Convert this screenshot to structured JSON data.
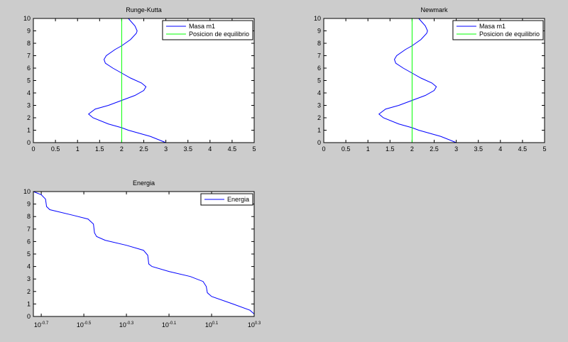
{
  "chart_data": [
    {
      "type": "line",
      "title": "Runge-Kutta",
      "xlim": [
        0,
        5
      ],
      "ylim": [
        0,
        10
      ],
      "xticks": [
        0,
        0.5,
        1,
        1.5,
        2,
        2.5,
        3,
        3.5,
        4,
        4.5,
        5
      ],
      "yticks": [
        0,
        1,
        2,
        3,
        4,
        5,
        6,
        7,
        8,
        9,
        10
      ],
      "legend": "northeast",
      "series": [
        {
          "name": "Masa m1",
          "color": "#0000ff",
          "x": [
            3.0,
            2.65,
            2.15,
            2.0,
            1.7,
            1.35,
            1.25,
            1.4,
            1.7,
            2.0,
            2.3,
            2.5,
            2.55,
            2.45,
            2.2,
            2.0,
            1.8,
            1.63,
            1.6,
            1.65,
            1.85,
            2.0,
            2.2,
            2.33,
            2.35,
            2.3,
            2.2,
            2.15
          ],
          "y": [
            0,
            0.5,
            1.0,
            1.2,
            1.5,
            2.0,
            2.3,
            2.7,
            3.0,
            3.4,
            3.8,
            4.2,
            4.5,
            4.8,
            5.2,
            5.6,
            6.0,
            6.4,
            6.7,
            7.0,
            7.5,
            7.8,
            8.3,
            8.8,
            9.0,
            9.4,
            9.8,
            10
          ]
        },
        {
          "name": "Posicion de equilibrio",
          "color": "#00ff00",
          "x": [
            2,
            2
          ],
          "y": [
            0,
            10
          ]
        }
      ]
    },
    {
      "type": "line",
      "title": "Newmark",
      "xlim": [
        0,
        5
      ],
      "ylim": [
        0,
        10
      ],
      "xticks": [
        0,
        0.5,
        1,
        1.5,
        2,
        2.5,
        3,
        3.5,
        4,
        4.5,
        5
      ],
      "yticks": [
        0,
        1,
        2,
        3,
        4,
        5,
        6,
        7,
        8,
        9,
        10
      ],
      "legend": "northeast",
      "series": [
        {
          "name": "Masa m1",
          "color": "#0000ff",
          "x": [
            3.0,
            2.65,
            2.15,
            2.0,
            1.7,
            1.35,
            1.25,
            1.4,
            1.7,
            2.0,
            2.3,
            2.5,
            2.55,
            2.45,
            2.2,
            2.0,
            1.8,
            1.63,
            1.6,
            1.65,
            1.85,
            2.0,
            2.2,
            2.33,
            2.35,
            2.3,
            2.2,
            2.15
          ],
          "y": [
            0,
            0.5,
            1.0,
            1.2,
            1.5,
            2.0,
            2.3,
            2.7,
            3.0,
            3.4,
            3.8,
            4.2,
            4.5,
            4.8,
            5.2,
            5.6,
            6.0,
            6.4,
            6.7,
            7.0,
            7.5,
            7.8,
            8.3,
            8.8,
            9.0,
            9.4,
            9.8,
            10
          ]
        },
        {
          "name": "Posicion de equilibrio",
          "color": "#00ff00",
          "x": [
            2,
            2
          ],
          "y": [
            0,
            10
          ]
        }
      ]
    },
    {
      "type": "line",
      "title": "Energia",
      "xlog": true,
      "xlim": [
        0.1832,
        1.9953
      ],
      "ylim": [
        0,
        10
      ],
      "xticks": [
        {
          "value": 0.1995,
          "label": "10",
          "exponent": "-0.7"
        },
        {
          "value": 0.3162,
          "label": "10",
          "exponent": "-0.5"
        },
        {
          "value": 0.5012,
          "label": "10",
          "exponent": "-0.3"
        },
        {
          "value": 0.7943,
          "label": "10",
          "exponent": "-0.1"
        },
        {
          "value": 1.2589,
          "label": "10",
          "exponent": "0.1"
        },
        {
          "value": 1.9953,
          "label": "10",
          "exponent": "0.3"
        }
      ],
      "yticks": [
        0,
        1,
        2,
        3,
        4,
        5,
        6,
        7,
        8,
        9,
        10
      ],
      "legend": "northeast",
      "series": [
        {
          "name": "Energia",
          "color": "#0000ff",
          "x": [
            0.1832,
            0.1995,
            0.2089,
            0.2113,
            0.2188,
            0.2818,
            0.3311,
            0.3508,
            0.3548,
            0.3631,
            0.3981,
            0.5012,
            0.6026,
            0.631,
            0.6383,
            0.6607,
            0.7943,
            1.0,
            1.1482,
            1.1885,
            1.2023,
            1.2589,
            1.5849,
            1.9055,
            1.9953
          ],
          "y": [
            10,
            9.75,
            9.4,
            8.8,
            8.55,
            8.1,
            7.8,
            7.4,
            6.7,
            6.4,
            6.1,
            5.7,
            5.3,
            4.9,
            4.2,
            4.0,
            3.6,
            3.2,
            2.8,
            2.4,
            1.9,
            1.6,
            1.0,
            0.5,
            0.2
          ]
        }
      ]
    }
  ]
}
